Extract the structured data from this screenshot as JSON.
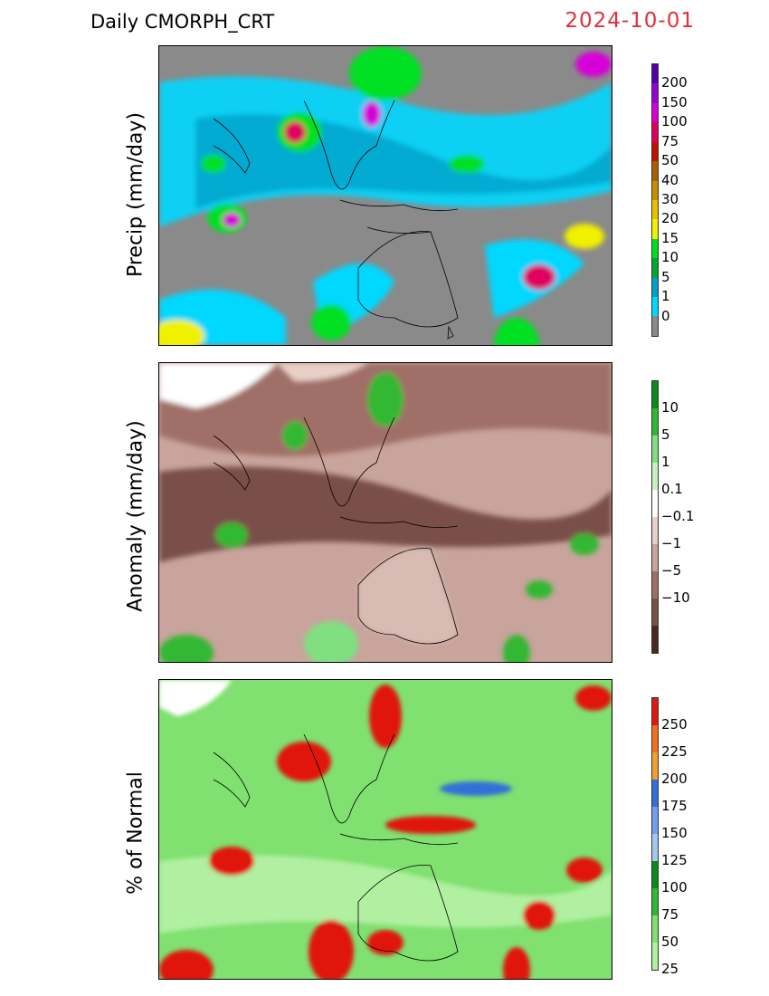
{
  "header": {
    "title": "Daily  CMORPH_CRT",
    "date": "2024-10-01"
  },
  "panels": [
    {
      "ylabel": "Precip (mm/day)",
      "colorbar": {
        "colors": [
          "#8a8a8a",
          "#00d8ff",
          "#00a0c8",
          "#00a830",
          "#00e020",
          "#f0f000",
          "#e8c000",
          "#c89000",
          "#a86000",
          "#c01000",
          "#e00060",
          "#d800d8",
          "#9800d8",
          "#5000a8"
        ],
        "labels": [
          "200",
          "150",
          "100",
          "75",
          "50",
          "40",
          "30",
          "20",
          "15",
          "10",
          "5",
          "1",
          "0"
        ]
      }
    },
    {
      "ylabel": "Anomaly (mm/day)",
      "colorbar": {
        "colors": [
          "#4a2820",
          "#7a5048",
          "#a07068",
          "#c8a49c",
          "#e8d0c8",
          "#ffffff",
          "#c8f0c0",
          "#80e080",
          "#30b830",
          "#0a8a1a"
        ],
        "labels": [
          "10",
          "5",
          "1",
          "0.1",
          "−0.1",
          "−1",
          "−5",
          "−10"
        ]
      }
    },
    {
      "ylabel": "% of Normal",
      "colorbar": {
        "colors": [
          "#b0f0a0",
          "#80e070",
          "#30b830",
          "#0a8a1a",
          "#a0c8f0",
          "#70a0f0",
          "#3070d8",
          "#f0a030",
          "#f07020",
          "#e01810"
        ],
        "labels": [
          "250",
          "225",
          "200",
          "175",
          "150",
          "125",
          "100",
          "75",
          "50",
          "25"
        ]
      }
    }
  ]
}
